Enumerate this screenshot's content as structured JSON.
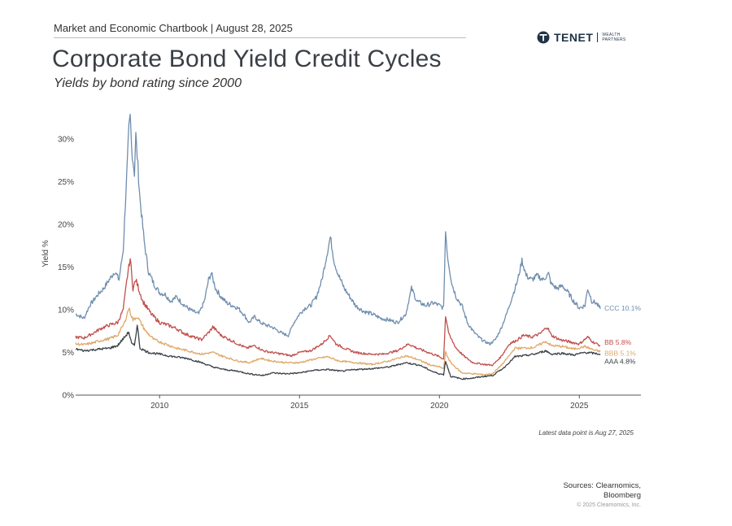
{
  "header": {
    "chartbook_line": "Market and Economic Chartbook | August 28, 2025"
  },
  "title": "Corporate Bond Yield Credit Cycles",
  "subtitle": "Yields by bond rating since 2000",
  "logo": {
    "name": "TENET",
    "sub_line1": "WEALTH",
    "sub_line2": "PARTNERS",
    "icon": "tenet-logo-icon"
  },
  "footer": {
    "latest": "Latest data point is Aug 27, 2025",
    "sources_line1": "Sources: Clearnomics,",
    "sources_line2": "Bloomberg",
    "copyright": "© 2025 Clearnomics, Inc."
  },
  "chart_data": {
    "type": "line",
    "title": "Corporate Bond Yield Credit Cycles",
    "subtitle": "Yields by bond rating since 2000",
    "xlabel": "",
    "ylabel": "Yield %",
    "xlim": [
      2007.0,
      2027.2
    ],
    "ylim": [
      0,
      32
    ],
    "x_ticks": [
      2010,
      2015,
      2020,
      2025
    ],
    "x_tick_labels": [
      "2010",
      "2015",
      "2020",
      "2025"
    ],
    "y_ticks": [
      0,
      5,
      10,
      15,
      20,
      25,
      30
    ],
    "y_tick_labels": [
      "0%",
      "5%",
      "10%",
      "15%",
      "20%",
      "25%",
      "30%"
    ],
    "grid": false,
    "legend": "end-labels",
    "series": [
      {
        "name": "CCC",
        "end_label": "CCC 10.1%",
        "color": "#6f8eae",
        "points": [
          [
            2007.0,
            9.5
          ],
          [
            2007.3,
            9.0
          ],
          [
            2007.5,
            10.5
          ],
          [
            2007.8,
            11.8
          ],
          [
            2008.0,
            12.5
          ],
          [
            2008.2,
            13.5
          ],
          [
            2008.4,
            14.5
          ],
          [
            2008.55,
            13.5
          ],
          [
            2008.7,
            17
          ],
          [
            2008.8,
            24
          ],
          [
            2008.9,
            31
          ],
          [
            2008.95,
            32.5
          ],
          [
            2009.0,
            29
          ],
          [
            2009.1,
            26
          ],
          [
            2009.15,
            30.5
          ],
          [
            2009.3,
            23
          ],
          [
            2009.45,
            18
          ],
          [
            2009.6,
            14.5
          ],
          [
            2009.8,
            13
          ],
          [
            2010.0,
            12
          ],
          [
            2010.2,
            11.8
          ],
          [
            2010.4,
            11
          ],
          [
            2010.6,
            11.5
          ],
          [
            2010.8,
            10.8
          ],
          [
            2011.0,
            10.2
          ],
          [
            2011.2,
            9.8
          ],
          [
            2011.4,
            9.5
          ],
          [
            2011.6,
            11
          ],
          [
            2011.75,
            13.5
          ],
          [
            2011.85,
            14.3
          ],
          [
            2012.0,
            12.5
          ],
          [
            2012.2,
            11.5
          ],
          [
            2012.4,
            10.8
          ],
          [
            2012.6,
            10.5
          ],
          [
            2012.8,
            10.2
          ],
          [
            2013.0,
            9.5
          ],
          [
            2013.2,
            8.5
          ],
          [
            2013.4,
            9.2
          ],
          [
            2013.6,
            8.5
          ],
          [
            2013.8,
            8.2
          ],
          [
            2014.0,
            8.0
          ],
          [
            2014.2,
            7.6
          ],
          [
            2014.4,
            7.2
          ],
          [
            2014.6,
            7.0
          ],
          [
            2014.8,
            8.5
          ],
          [
            2015.0,
            9.5
          ],
          [
            2015.2,
            10.2
          ],
          [
            2015.4,
            10.5
          ],
          [
            2015.6,
            11.5
          ],
          [
            2015.8,
            13.5
          ],
          [
            2015.95,
            16
          ],
          [
            2016.1,
            18.5
          ],
          [
            2016.25,
            15.5
          ],
          [
            2016.4,
            14
          ],
          [
            2016.6,
            12.5
          ],
          [
            2016.8,
            11.5
          ],
          [
            2017.0,
            10.5
          ],
          [
            2017.3,
            9.8
          ],
          [
            2017.6,
            9.5
          ],
          [
            2017.9,
            9.0
          ],
          [
            2018.2,
            8.8
          ],
          [
            2018.5,
            8.5
          ],
          [
            2018.8,
            9.5
          ],
          [
            2019.0,
            12.5
          ],
          [
            2019.2,
            11
          ],
          [
            2019.5,
            10.5
          ],
          [
            2019.8,
            10.8
          ],
          [
            2020.0,
            10.5
          ],
          [
            2020.15,
            10.2
          ],
          [
            2020.22,
            19.2
          ],
          [
            2020.3,
            16
          ],
          [
            2020.45,
            13
          ],
          [
            2020.6,
            11.5
          ],
          [
            2020.8,
            10.5
          ],
          [
            2021.0,
            8.5
          ],
          [
            2021.2,
            7.5
          ],
          [
            2021.4,
            6.8
          ],
          [
            2021.6,
            6.3
          ],
          [
            2021.8,
            6.0
          ],
          [
            2022.0,
            6.5
          ],
          [
            2022.2,
            7.8
          ],
          [
            2022.4,
            9.5
          ],
          [
            2022.6,
            11.5
          ],
          [
            2022.8,
            13.5
          ],
          [
            2022.95,
            15.8
          ],
          [
            2023.1,
            14
          ],
          [
            2023.3,
            13.5
          ],
          [
            2023.5,
            14
          ],
          [
            2023.7,
            13.5
          ],
          [
            2023.9,
            14.2
          ],
          [
            2024.0,
            13
          ],
          [
            2024.2,
            12.5
          ],
          [
            2024.4,
            12.8
          ],
          [
            2024.6,
            12
          ],
          [
            2024.8,
            11
          ],
          [
            2025.0,
            10.2
          ],
          [
            2025.2,
            10.5
          ],
          [
            2025.3,
            12.5
          ],
          [
            2025.45,
            11
          ],
          [
            2025.6,
            10.8
          ],
          [
            2025.75,
            10.1
          ]
        ]
      },
      {
        "name": "BB",
        "end_label": "BB 5.8%",
        "color": "#c0504d",
        "points": [
          [
            2007.0,
            6.8
          ],
          [
            2007.3,
            6.7
          ],
          [
            2007.6,
            7.2
          ],
          [
            2007.9,
            7.8
          ],
          [
            2008.2,
            8.2
          ],
          [
            2008.5,
            8.5
          ],
          [
            2008.7,
            10
          ],
          [
            2008.85,
            14
          ],
          [
            2008.95,
            16
          ],
          [
            2009.05,
            12.5
          ],
          [
            2009.15,
            13.5
          ],
          [
            2009.4,
            11
          ],
          [
            2009.7,
            9.5
          ],
          [
            2010.0,
            8.5
          ],
          [
            2010.3,
            8.2
          ],
          [
            2010.6,
            7.8
          ],
          [
            2010.9,
            7.2
          ],
          [
            2011.2,
            6.8
          ],
          [
            2011.5,
            6.5
          ],
          [
            2011.8,
            7.5
          ],
          [
            2011.9,
            8.0
          ],
          [
            2012.2,
            7.0
          ],
          [
            2012.5,
            6.5
          ],
          [
            2012.8,
            6.0
          ],
          [
            2013.1,
            5.5
          ],
          [
            2013.4,
            5.8
          ],
          [
            2013.7,
            5.2
          ],
          [
            2014.0,
            5.0
          ],
          [
            2014.4,
            4.8
          ],
          [
            2014.7,
            4.6
          ],
          [
            2015.0,
            5.0
          ],
          [
            2015.4,
            5.2
          ],
          [
            2015.8,
            6.0
          ],
          [
            2016.1,
            7.0
          ],
          [
            2016.3,
            6.0
          ],
          [
            2016.6,
            5.5
          ],
          [
            2017.0,
            5.0
          ],
          [
            2017.5,
            4.8
          ],
          [
            2018.0,
            4.8
          ],
          [
            2018.5,
            5.2
          ],
          [
            2018.9,
            6.0
          ],
          [
            2019.2,
            5.5
          ],
          [
            2019.6,
            5.0
          ],
          [
            2020.0,
            4.5
          ],
          [
            2020.15,
            4.2
          ],
          [
            2020.22,
            9.3
          ],
          [
            2020.35,
            7.0
          ],
          [
            2020.6,
            5.5
          ],
          [
            2020.9,
            4.5
          ],
          [
            2021.2,
            3.8
          ],
          [
            2021.6,
            3.6
          ],
          [
            2021.9,
            3.5
          ],
          [
            2022.2,
            4.5
          ],
          [
            2022.5,
            6.0
          ],
          [
            2022.8,
            6.5
          ],
          [
            2023.0,
            7.0
          ],
          [
            2023.3,
            6.8
          ],
          [
            2023.6,
            7.2
          ],
          [
            2023.85,
            8.0
          ],
          [
            2024.0,
            7.0
          ],
          [
            2024.3,
            6.5
          ],
          [
            2024.7,
            6.2
          ],
          [
            2025.0,
            6.0
          ],
          [
            2025.3,
            6.8
          ],
          [
            2025.5,
            6.2
          ],
          [
            2025.75,
            5.8
          ]
        ]
      },
      {
        "name": "BBB",
        "end_label": "BBB 5.1%",
        "color": "#e0a868",
        "points": [
          [
            2007.0,
            6.0
          ],
          [
            2007.3,
            5.9
          ],
          [
            2007.6,
            6.1
          ],
          [
            2007.9,
            6.4
          ],
          [
            2008.2,
            6.6
          ],
          [
            2008.5,
            7.0
          ],
          [
            2008.75,
            8.5
          ],
          [
            2008.9,
            10.2
          ],
          [
            2009.05,
            8.8
          ],
          [
            2009.2,
            9.2
          ],
          [
            2009.5,
            7.5
          ],
          [
            2009.8,
            6.5
          ],
          [
            2010.2,
            6.0
          ],
          [
            2010.6,
            5.5
          ],
          [
            2011.0,
            5.2
          ],
          [
            2011.5,
            4.8
          ],
          [
            2011.9,
            5.0
          ],
          [
            2012.3,
            4.5
          ],
          [
            2012.8,
            4.0
          ],
          [
            2013.2,
            3.8
          ],
          [
            2013.6,
            4.3
          ],
          [
            2014.0,
            4.0
          ],
          [
            2014.5,
            3.8
          ],
          [
            2015.0,
            3.8
          ],
          [
            2015.5,
            4.2
          ],
          [
            2016.0,
            4.5
          ],
          [
            2016.4,
            4.0
          ],
          [
            2017.0,
            3.8
          ],
          [
            2017.6,
            3.6
          ],
          [
            2018.2,
            4.0
          ],
          [
            2018.8,
            4.6
          ],
          [
            2019.2,
            4.2
          ],
          [
            2019.7,
            3.5
          ],
          [
            2020.0,
            3.3
          ],
          [
            2020.15,
            3.1
          ],
          [
            2020.22,
            5.0
          ],
          [
            2020.4,
            3.8
          ],
          [
            2020.8,
            2.6
          ],
          [
            2021.2,
            2.5
          ],
          [
            2021.6,
            2.4
          ],
          [
            2021.9,
            2.5
          ],
          [
            2022.3,
            3.8
          ],
          [
            2022.7,
            5.5
          ],
          [
            2023.0,
            5.5
          ],
          [
            2023.4,
            5.6
          ],
          [
            2023.8,
            6.3
          ],
          [
            2024.0,
            5.8
          ],
          [
            2024.4,
            5.7
          ],
          [
            2024.8,
            5.4
          ],
          [
            2025.2,
            5.7
          ],
          [
            2025.5,
            5.3
          ],
          [
            2025.75,
            5.1
          ]
        ]
      },
      {
        "name": "AAA",
        "end_label": "AAA 4.8%",
        "color": "#3b4148",
        "points": [
          [
            2007.0,
            5.4
          ],
          [
            2007.3,
            5.2
          ],
          [
            2007.6,
            5.3
          ],
          [
            2007.9,
            5.4
          ],
          [
            2008.2,
            5.5
          ],
          [
            2008.5,
            5.8
          ],
          [
            2008.75,
            6.8
          ],
          [
            2008.9,
            7.4
          ],
          [
            2009.0,
            6.0
          ],
          [
            2009.1,
            5.8
          ],
          [
            2009.2,
            8.2
          ],
          [
            2009.3,
            5.5
          ],
          [
            2009.6,
            5.0
          ],
          [
            2010.0,
            4.8
          ],
          [
            2010.5,
            4.5
          ],
          [
            2011.0,
            4.3
          ],
          [
            2011.5,
            3.8
          ],
          [
            2011.9,
            3.3
          ],
          [
            2012.3,
            3.0
          ],
          [
            2012.8,
            2.8
          ],
          [
            2013.2,
            2.5
          ],
          [
            2013.7,
            2.3
          ],
          [
            2014.0,
            2.6
          ],
          [
            2014.5,
            2.5
          ],
          [
            2015.0,
            2.6
          ],
          [
            2015.5,
            2.9
          ],
          [
            2016.0,
            3.0
          ],
          [
            2016.5,
            2.8
          ],
          [
            2017.0,
            3.0
          ],
          [
            2017.6,
            3.1
          ],
          [
            2018.2,
            3.3
          ],
          [
            2018.8,
            3.8
          ],
          [
            2019.3,
            3.5
          ],
          [
            2019.8,
            2.7
          ],
          [
            2020.0,
            2.5
          ],
          [
            2020.15,
            2.4
          ],
          [
            2020.22,
            4.0
          ],
          [
            2020.4,
            2.2
          ],
          [
            2020.8,
            1.9
          ],
          [
            2021.2,
            2.0
          ],
          [
            2021.6,
            2.2
          ],
          [
            2021.9,
            2.3
          ],
          [
            2022.3,
            3.2
          ],
          [
            2022.7,
            4.5
          ],
          [
            2023.0,
            4.6
          ],
          [
            2023.4,
            4.8
          ],
          [
            2023.8,
            5.2
          ],
          [
            2024.0,
            4.8
          ],
          [
            2024.4,
            4.9
          ],
          [
            2024.8,
            4.7
          ],
          [
            2025.2,
            5.0
          ],
          [
            2025.5,
            4.9
          ],
          [
            2025.75,
            4.8
          ]
        ]
      }
    ]
  }
}
